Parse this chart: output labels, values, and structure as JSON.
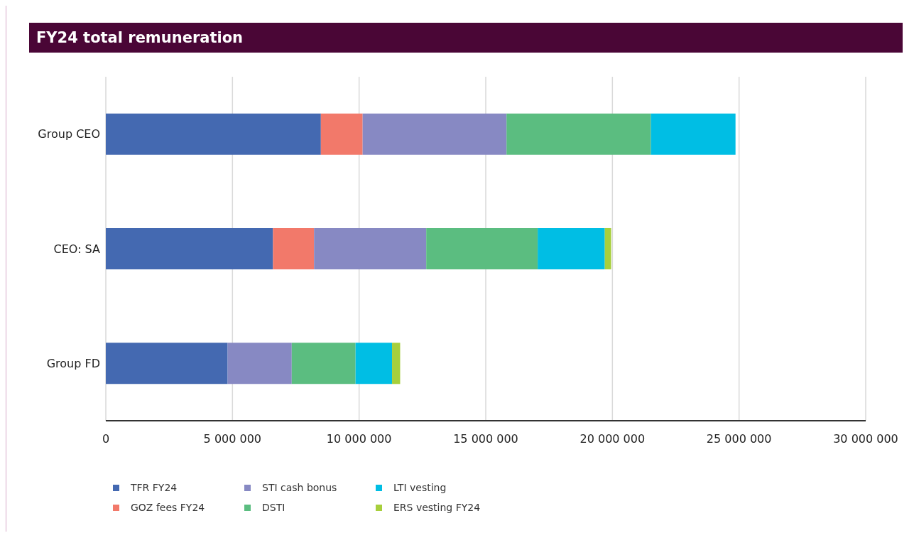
{
  "chart_data": {
    "type": "bar",
    "orientation": "horizontal",
    "stacked": true,
    "title": "FY24 total remuneration",
    "categories": [
      "Group CEO",
      "CEO: SA",
      "Group FD"
    ],
    "series": [
      {
        "name": "TFR FY24",
        "color": "#4469b1",
        "values": [
          8490000,
          6600000,
          4810000
        ]
      },
      {
        "name": "GOZ fees FY24",
        "color": "#f2796a",
        "values": [
          1650000,
          1620000,
          null
        ]
      },
      {
        "name": "STI cash bonus",
        "color": "#8789c3",
        "values": [
          5680000,
          4430000,
          2530000
        ]
      },
      {
        "name": "DSTI",
        "color": "#5bbd80",
        "values": [
          5700000,
          4400000,
          2520000
        ]
      },
      {
        "name": "LTI vesting",
        "color": "#00bee4",
        "values": [
          3340000,
          2650000,
          1440000
        ]
      },
      {
        "name": "ERS vesting FY24",
        "color": "#a7cf3c",
        "values": [
          null,
          250000,
          320000
        ]
      }
    ],
    "xlim": [
      0,
      30000000
    ],
    "xticks": [
      0,
      5000000,
      10000000,
      15000000,
      20000000,
      25000000,
      30000000
    ],
    "grid": "x",
    "legend": "bottom left"
  }
}
